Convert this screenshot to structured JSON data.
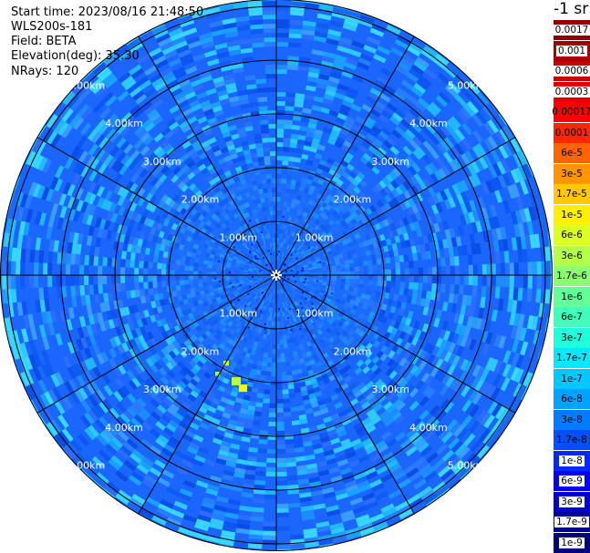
{
  "header": {
    "start_time": "Start time: 2023/08/16 21:48:50",
    "instrument": "WLS200s-181",
    "field": "Field: BETA",
    "elevation": "Elevation(deg): 35.30",
    "nrays": "NRays: 120"
  },
  "colorbar": {
    "title": "-1 sr",
    "labels": [
      "0.0017",
      "0.001",
      "0.0006",
      "0.0003",
      "0.00017",
      "0.0001",
      "6e-5",
      "3e-5",
      "1.7e-5",
      "1e-5",
      "6e-6",
      "3e-6",
      "1.7e-6",
      "1e-6",
      "6e-7",
      "3e-7",
      "1.7e-7",
      "1e-7",
      "6e-8",
      "3e-8",
      "1.7e-8",
      "1e-8",
      "6e-9",
      "3e-9",
      "1.7e-9",
      "1e-9"
    ],
    "colors": [
      "#8c0000",
      "#a80000",
      "#c80000",
      "#e40000",
      "#ff0000",
      "#ff2800",
      "#ff6400",
      "#ff9600",
      "#ffc800",
      "#fff000",
      "#dcff24",
      "#b4ff4a",
      "#8cff70",
      "#64ff96",
      "#40ffbc",
      "#20ffdc",
      "#00eaff",
      "#00c8ff",
      "#00a2ff",
      "#007cff",
      "#0050ff",
      "#0028ff",
      "#0000f0",
      "#0000c8",
      "#0000a0",
      "#000078"
    ],
    "light_text_indices": [
      0,
      1,
      2,
      3,
      21,
      22,
      23,
      24,
      25
    ]
  },
  "plot": {
    "range_ring_labels_km": [
      "1.00km",
      "2.00km",
      "3.00km",
      "4.00km",
      "5.00km"
    ],
    "spokes": 12,
    "rays": 120,
    "background_color": "#1a66ff"
  }
}
